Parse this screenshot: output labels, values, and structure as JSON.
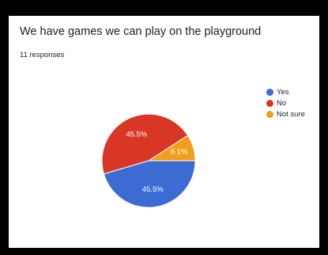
{
  "title": "We have games we can play on the playground",
  "responses_label": "11 responses",
  "chart_data": {
    "type": "pie",
    "categories": [
      "Yes",
      "No",
      "Not sure"
    ],
    "values": [
      45.5,
      45.5,
      9.1
    ],
    "labels": [
      "45.5%",
      "45.5%",
      "9.1%"
    ],
    "colors": [
      "#3c6bd4",
      "#d93726",
      "#f29d1b"
    ],
    "legend_position": "right"
  }
}
